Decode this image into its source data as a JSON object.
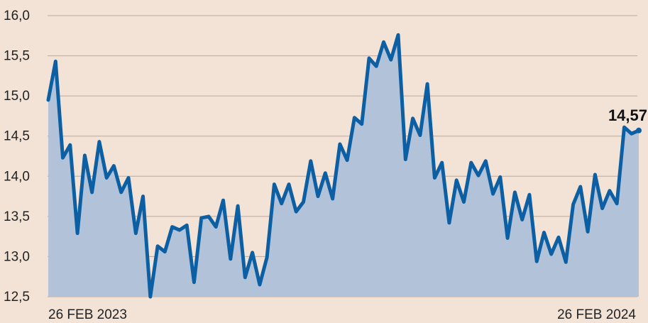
{
  "chart_data": {
    "type": "area",
    "title": "",
    "xlabel": "",
    "ylabel": "",
    "ylim": [
      12.5,
      16.0
    ],
    "yticks": [
      "12,5",
      "13,0",
      "13,5",
      "14,0",
      "14,5",
      "15,0",
      "15,5",
      "16,0"
    ],
    "x_start_label": "26 FEB 2023",
    "x_end_label": "26 FEB 2024",
    "last_value_label": "14,57",
    "grid": true,
    "colors": {
      "line": "#0c5fa3",
      "fill": "#b2c3d9",
      "background": "#f3e3d7",
      "grid": "#bda99b"
    },
    "values": [
      14.95,
      15.43,
      14.23,
      14.39,
      13.29,
      14.26,
      13.8,
      14.43,
      13.98,
      14.13,
      13.8,
      13.98,
      13.29,
      13.75,
      12.5,
      13.13,
      13.06,
      13.37,
      13.33,
      13.39,
      12.68,
      13.48,
      13.5,
      13.37,
      13.7,
      12.97,
      13.63,
      12.74,
      13.05,
      12.65,
      12.99,
      13.9,
      13.66,
      13.9,
      13.56,
      13.68,
      14.19,
      13.75,
      14.04,
      13.72,
      14.4,
      14.2,
      14.73,
      14.65,
      15.47,
      15.37,
      15.67,
      15.45,
      15.76,
      14.21,
      14.72,
      14.51,
      15.15,
      13.98,
      14.17,
      13.42,
      13.95,
      13.68,
      14.17,
      14.01,
      14.19,
      13.78,
      13.99,
      13.23,
      13.8,
      13.46,
      13.77,
      12.94,
      13.3,
      13.03,
      13.24,
      12.93,
      13.65,
      13.87,
      13.31,
      14.02,
      13.6,
      13.82,
      13.66,
      14.61,
      14.53,
      14.57
    ]
  }
}
